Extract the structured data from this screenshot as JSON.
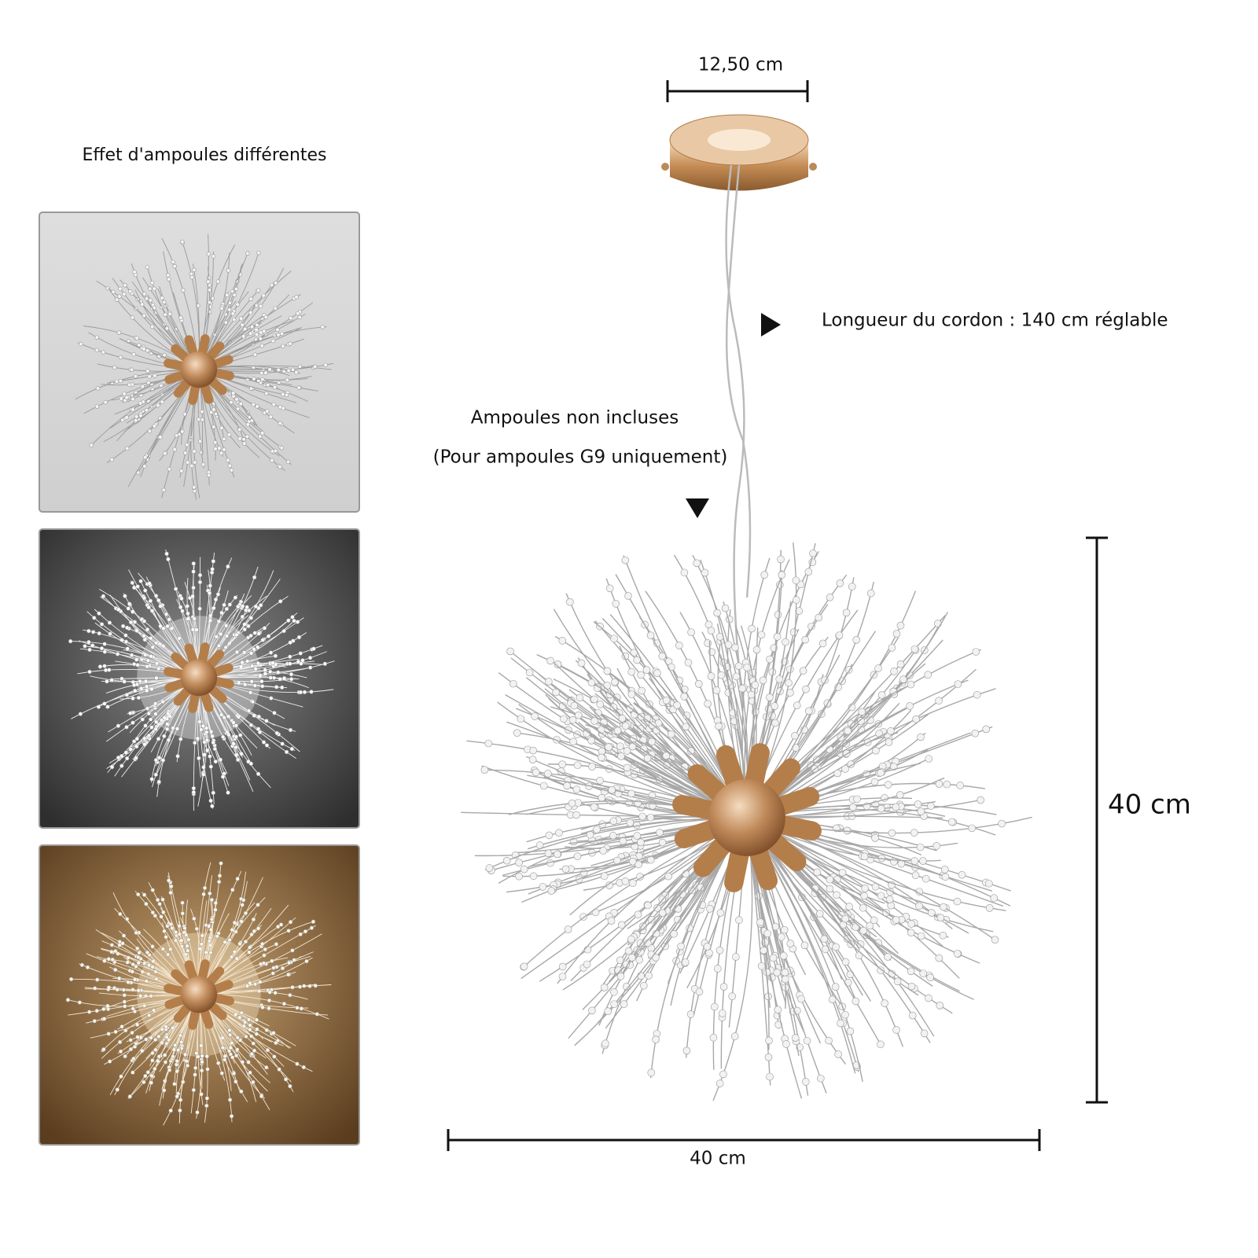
{
  "panel_title": "Effet d'ampoules différentes",
  "dimensions": {
    "canopy_width": "12,50 cm",
    "cord_length": "Longueur du cordon : 140 cm réglable",
    "height": "40 cm",
    "width": "40 cm"
  },
  "bulb_note": {
    "line1": "Ampoules non incluses",
    "line2": "(Pour ampoules G9 uniquement)"
  }
}
